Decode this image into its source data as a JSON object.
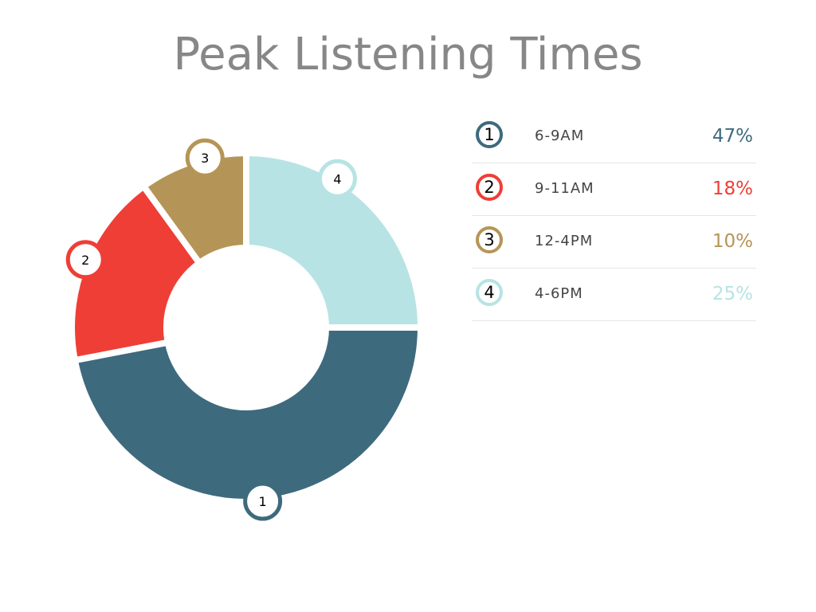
{
  "chart_data": {
    "type": "pie",
    "title": "Peak Listening Times",
    "hole": "donut",
    "legend_position": "right",
    "slices": [
      {
        "number": "1",
        "label": "6-9AM",
        "percent_text": "47%",
        "value": 47,
        "color": "#3e6a7e"
      },
      {
        "number": "2",
        "label": "9-11AM",
        "percent_text": "18%",
        "value": 18,
        "color": "#ef3e36"
      },
      {
        "number": "3",
        "label": "12-4PM",
        "percent_text": "10%",
        "value": 10,
        "color": "#b59557"
      },
      {
        "number": "4",
        "label": "4-6PM",
        "percent_text": "25%",
        "value": 25,
        "color": "#b7e3e4"
      }
    ]
  }
}
